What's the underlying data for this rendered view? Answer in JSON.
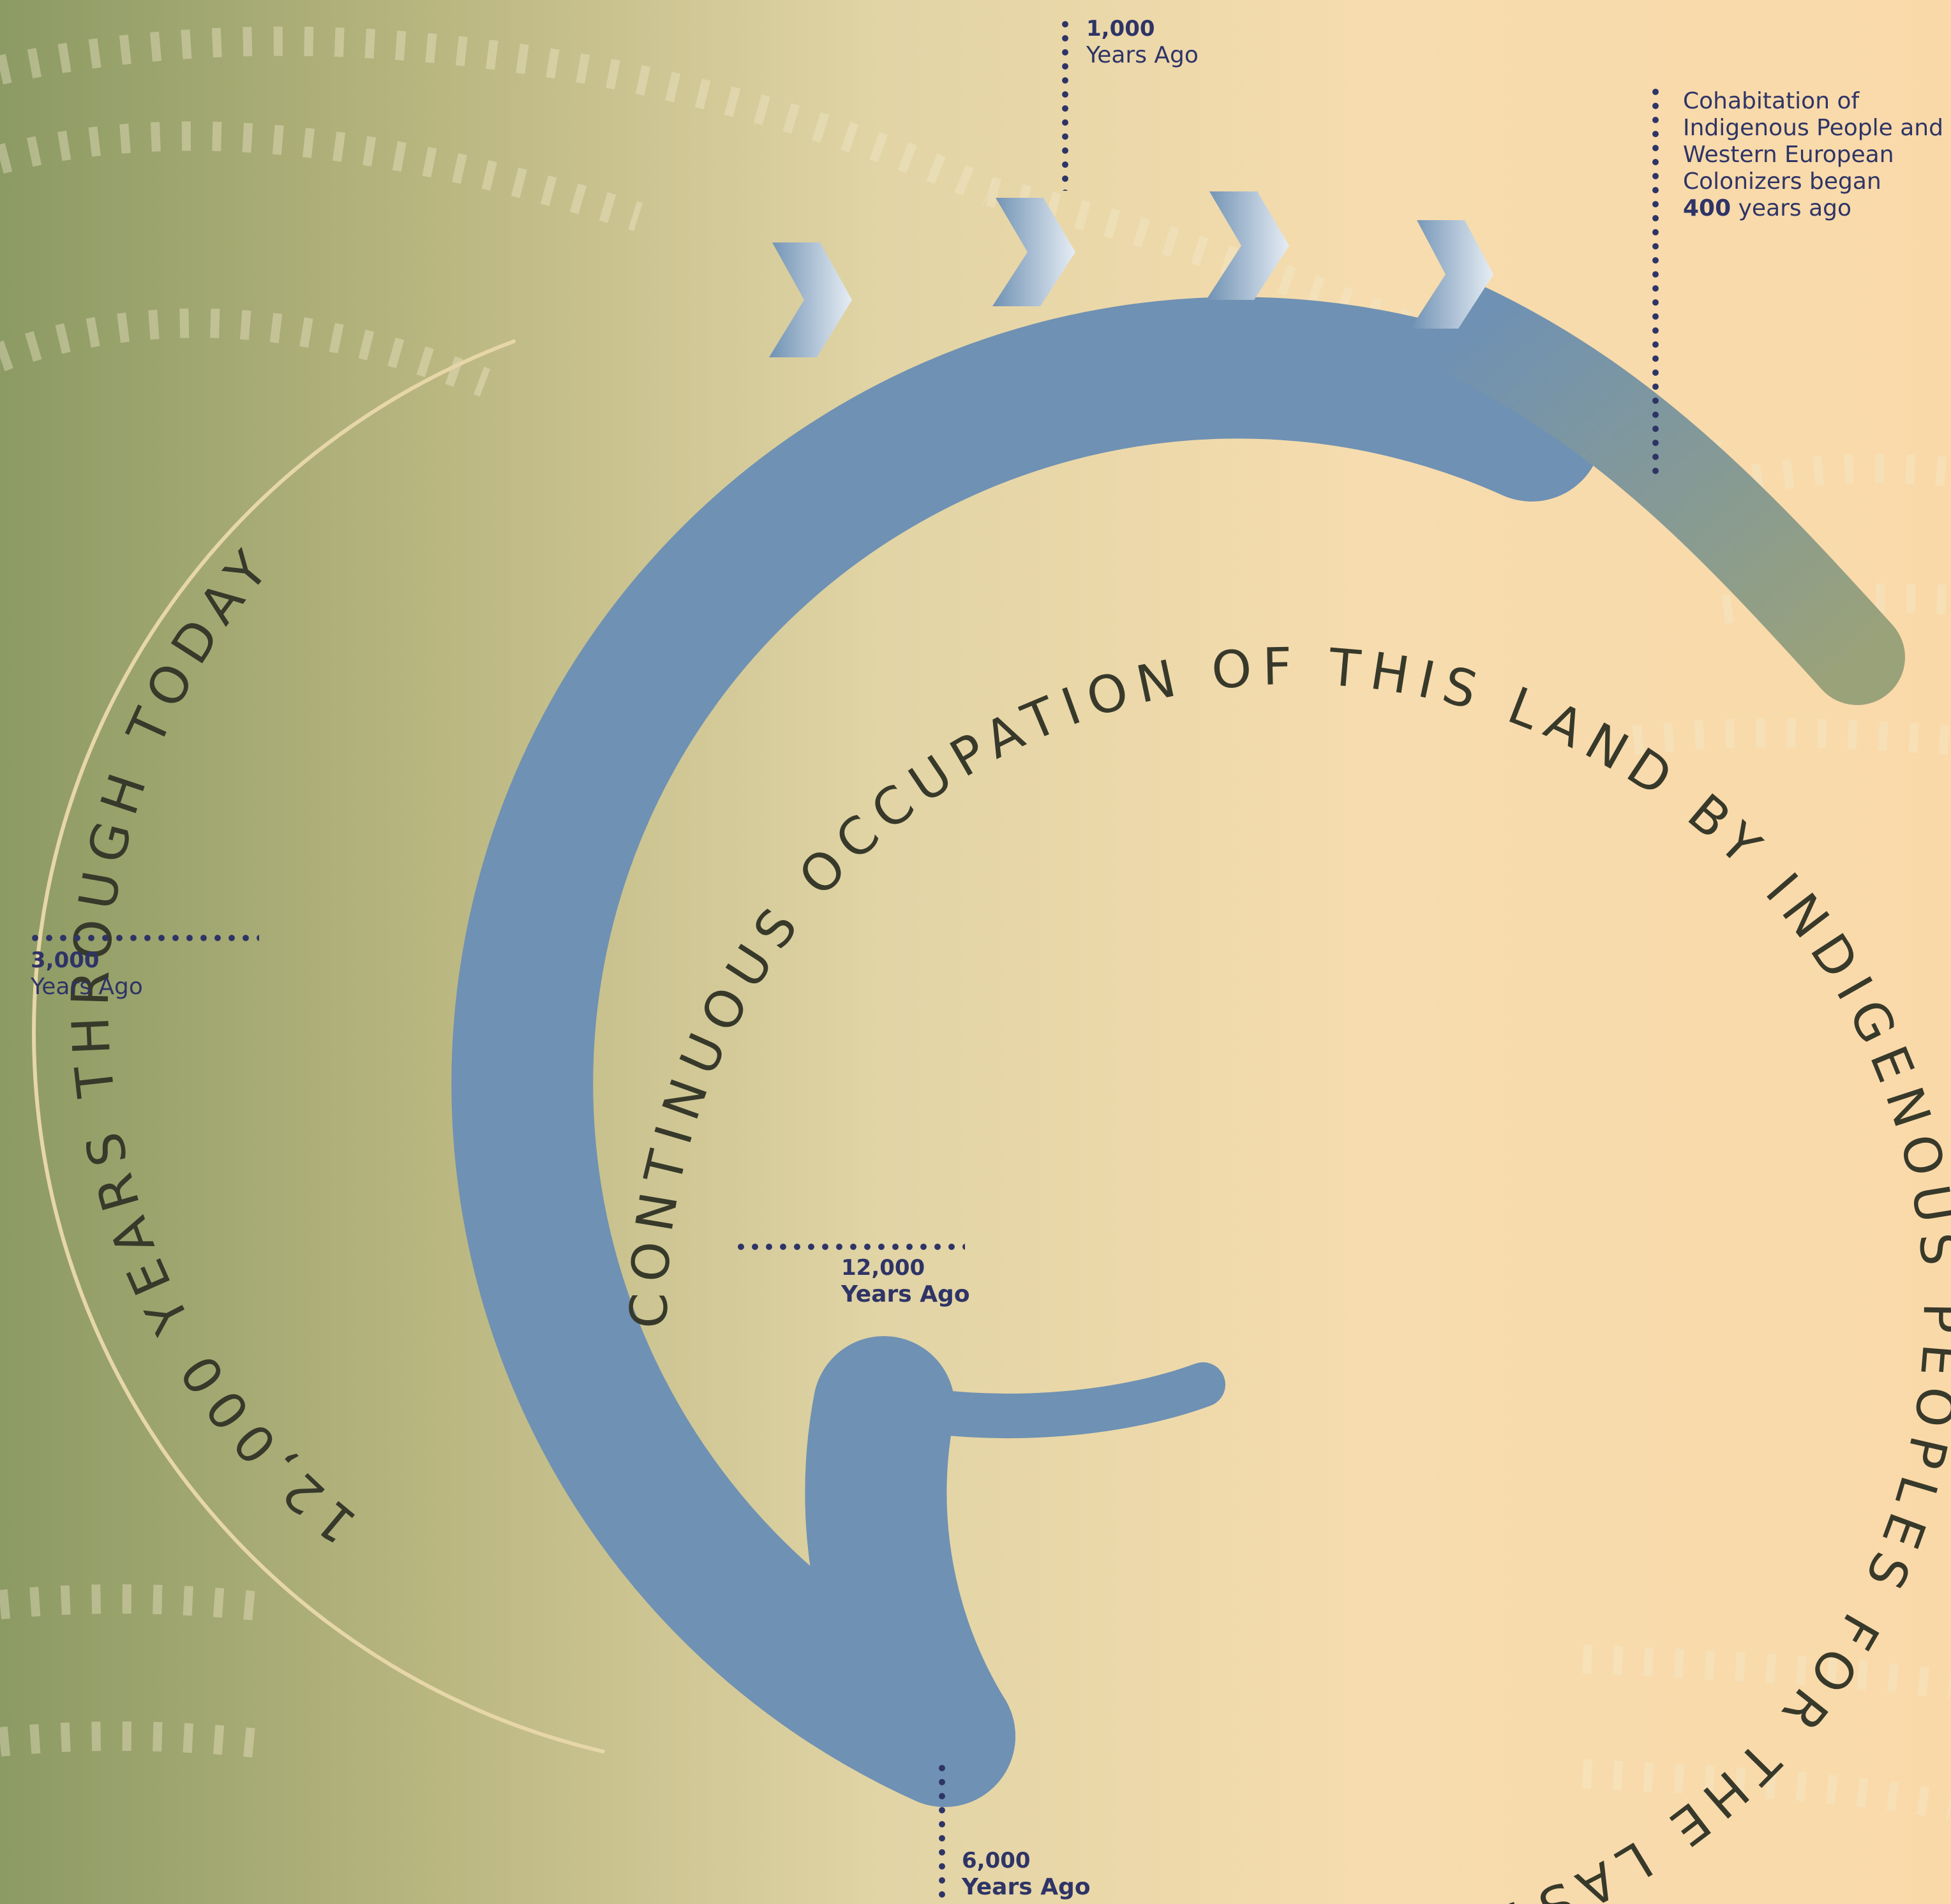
{
  "outer_ring_text": "12,000 YEARS THROUGH TODAY",
  "inner_ring_text": "CONTINUOUS OCCUPATION OF THIS LAND BY INDIGENOUS PEOPLES FOR THE LAST",
  "markers": {
    "m1000": {
      "value": "1,000",
      "unit": "Years Ago"
    },
    "m3000": {
      "value": "3,000",
      "unit": "Years Ago"
    },
    "m12000": {
      "value": "12,000",
      "unit": "Years Ago"
    },
    "m6000": {
      "value": "6,000",
      "unit": "Years Ago"
    }
  },
  "cohabitation": {
    "line1": "Cohabitation of",
    "line2": "Indigenous People and",
    "line3": "Western European",
    "line4": "Colonizers began",
    "years": "400",
    "years_suffix": "years ago"
  },
  "colors": {
    "background_left": "#8c9a63",
    "background_right": "#f9dbac",
    "ring": "#6f91b3",
    "label_text": "#2e3466",
    "ring_text": "#37392a"
  }
}
